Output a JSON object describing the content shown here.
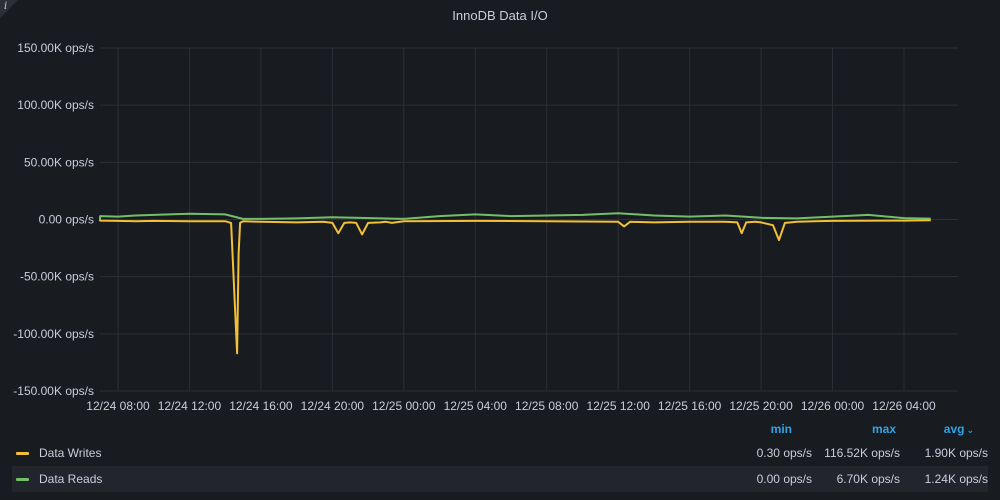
{
  "panel": {
    "title": "InnoDB Data I/O",
    "info_icon": "i"
  },
  "chart_data": {
    "type": "line",
    "title": "InnoDB Data I/O",
    "ylabel": "",
    "unit": "ops/s",
    "ylim": [
      -150000,
      150000
    ],
    "y_ticks": [
      "150.00K ops/s",
      "100.00K ops/s",
      "50.00K ops/s",
      "0.00 ops/s",
      "-50.00K ops/s",
      "-100.00K ops/s",
      "-150.00K ops/s"
    ],
    "y_tick_values": [
      150000,
      100000,
      50000,
      0,
      -50000,
      -100000,
      -150000
    ],
    "x_ticks": [
      "12/24 08:00",
      "12/24 12:00",
      "12/24 16:00",
      "12/24 20:00",
      "12/25 00:00",
      "12/25 04:00",
      "12/25 08:00",
      "12/25 12:00",
      "12/25 16:00",
      "12/25 20:00",
      "12/26 00:00",
      "12/26 04:00"
    ],
    "x_start": "2023-12-24T08:00",
    "x_end": "2023-12-26T04:00",
    "grid": true,
    "legend_position": "bottom",
    "series": [
      {
        "name": "Data Writes",
        "color": "#f2c037",
        "x": [
          "12/24 03:30",
          "12/24 04:30",
          "12/24 06:30",
          "12/24 07:00",
          "12/24 08:00",
          "12/24 09:00",
          "12/24 10:00",
          "12/24 12:00",
          "12/24 14:00",
          "12/24 14:20",
          "12/24 14:30",
          "12/24 14:40",
          "12/24 14:45",
          "12/24 14:50",
          "12/24 15:00",
          "12/24 16:00",
          "12/24 18:00",
          "12/24 19:30",
          "12/24 20:00",
          "12/24 20:20",
          "12/24 20:40",
          "12/24 21:00",
          "12/24 21:20",
          "12/24 21:40",
          "12/24 22:00",
          "12/24 22:40",
          "12/24 23:00",
          "12/24 23:20",
          "12/25 00:00",
          "12/25 04:00",
          "12/25 08:00",
          "12/25 12:00",
          "12/25 12:20",
          "12/25 12:40",
          "12/25 14:00",
          "12/25 16:00",
          "12/25 18:00",
          "12/25 18:40",
          "12/25 18:55",
          "12/25 19:10",
          "12/25 19:40",
          "12/25 20:00",
          "12/25 20:40",
          "12/25 21:00",
          "12/25 21:20",
          "12/25 21:40",
          "12/25 22:00",
          "12/25 23:00",
          "12/26 00:00",
          "12/26 04:00",
          "12/26 05:30"
        ],
        "y": [
          -800,
          -700,
          -900,
          -1000,
          -1200,
          -1500,
          -1200,
          -1500,
          -1500,
          -3000,
          -60000,
          -117000,
          -30000,
          -3000,
          -1500,
          -2000,
          -2500,
          -2000,
          -3000,
          -12000,
          -3000,
          -2500,
          -3000,
          -13000,
          -3000,
          -2500,
          -2000,
          -3000,
          -1500,
          -1200,
          -1500,
          -2000,
          -6000,
          -2000,
          -2500,
          -2000,
          -2000,
          -2500,
          -12000,
          -2500,
          -2000,
          -2500,
          -5000,
          -18000,
          -3000,
          -2500,
          -2000,
          -1500,
          -1200,
          -1000,
          -700
        ]
      },
      {
        "name": "Data Reads",
        "color": "#73bf69",
        "x": [
          "12/24 03:30",
          "12/24 04:30",
          "12/24 06:30",
          "12/24 07:00",
          "12/24 08:00",
          "12/24 09:00",
          "12/24 10:00",
          "12/24 12:00",
          "12/24 14:00",
          "12/24 15:00",
          "12/24 16:00",
          "12/24 18:00",
          "12/24 20:00",
          "12/25 00:00",
          "12/25 02:00",
          "12/25 04:00",
          "12/25 06:00",
          "12/25 08:00",
          "12/25 10:00",
          "12/25 12:00",
          "12/25 14:00",
          "12/25 16:00",
          "12/25 18:00",
          "12/25 20:00",
          "12/25 22:00",
          "12/26 00:00",
          "12/26 02:00",
          "12/26 04:00",
          "12/26 05:30"
        ],
        "y": [
          0,
          0,
          0,
          3000,
          2500,
          3500,
          4000,
          5000,
          4500,
          500,
          500,
          1000,
          2000,
          500,
          3000,
          4500,
          3000,
          3500,
          4000,
          5500,
          3500,
          2500,
          3500,
          1500,
          1000,
          2500,
          4000,
          1200,
          800
        ]
      }
    ]
  },
  "legend": {
    "headers": {
      "min": "min",
      "max": "max",
      "avg": "avg",
      "sort_indicator": "⌄"
    },
    "rows": [
      {
        "name": "Data Writes",
        "color": "#f2c037",
        "min": "0.30 ops/s",
        "max": "116.52K ops/s",
        "avg": "1.90K ops/s"
      },
      {
        "name": "Data Reads",
        "color": "#73bf69",
        "min": "0.00 ops/s",
        "max": "6.70K ops/s",
        "avg": "1.24K ops/s"
      }
    ]
  }
}
